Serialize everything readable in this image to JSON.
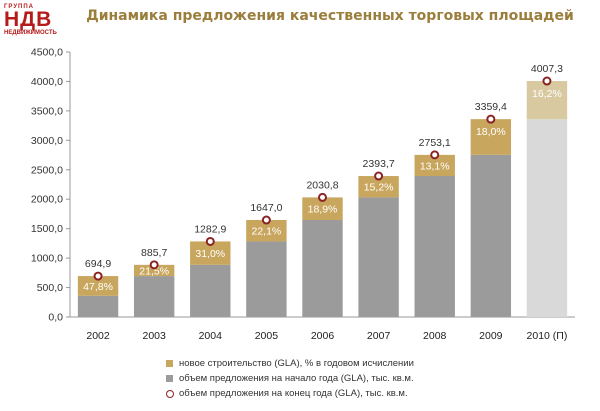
{
  "logo": {
    "top_text": "ГРУППА",
    "main_text": "НДВ",
    "bottom_text": "НЕДВИЖИМОСТЬ"
  },
  "colors": {
    "base_bar": "#9b9b9b",
    "forecast_base_bar": "#d9d9d9",
    "new_construction": "#c8a65e",
    "forecast_new_construction": "#d8c9a0",
    "marker": "#8b2323",
    "title": "#9b7d3c"
  },
  "chart_data": {
    "type": "bar",
    "title": "Динамика предложения качественных торговых площадей",
    "categories": [
      "2002",
      "2003",
      "2004",
      "2005",
      "2006",
      "2007",
      "2008",
      "2009",
      "2010 (П)"
    ],
    "series": [
      {
        "name": "объем предложения на начало года (GLA), тыс. кв.м.",
        "values": [
          360,
          695,
          885,
          1283,
          1647,
          2031,
          2394,
          2753,
          3359
        ]
      },
      {
        "name": "новое строительство (GLA), % в годовом исчислении",
        "values": [
          47.8,
          21.5,
          31.0,
          22.1,
          18.9,
          15.2,
          13.1,
          18.0,
          16.2
        ],
        "labels": [
          "47,8%",
          "21,5%",
          "31,0%",
          "22,1%",
          "18,9%",
          "15,2%",
          "13,1%",
          "18,0%",
          "16,2%"
        ]
      },
      {
        "name": "объем предложения на конец года (GLA), тыс. кв.м.",
        "values": [
          694.9,
          885.7,
          1282.9,
          1647.0,
          2030.8,
          2393.7,
          2753.1,
          3359.4,
          4007.3
        ],
        "labels": [
          "694,9",
          "885,7",
          "1282,9",
          "1647,0",
          "2030,8",
          "2393,7",
          "2753,1",
          "3359,4",
          "4007,3"
        ]
      }
    ],
    "forecast_index": 8,
    "ylim": [
      0,
      4500
    ],
    "yticks": [
      0,
      500,
      1000,
      1500,
      2000,
      2500,
      3000,
      3500,
      4000,
      4500
    ],
    "ytick_labels": [
      "0,0",
      "500,0",
      "1000,0",
      "1500,0",
      "2000,0",
      "2500,0",
      "3000,0",
      "3500,0",
      "4000,0",
      "4500,0"
    ],
    "legend_position": "bottom",
    "grid": false
  }
}
